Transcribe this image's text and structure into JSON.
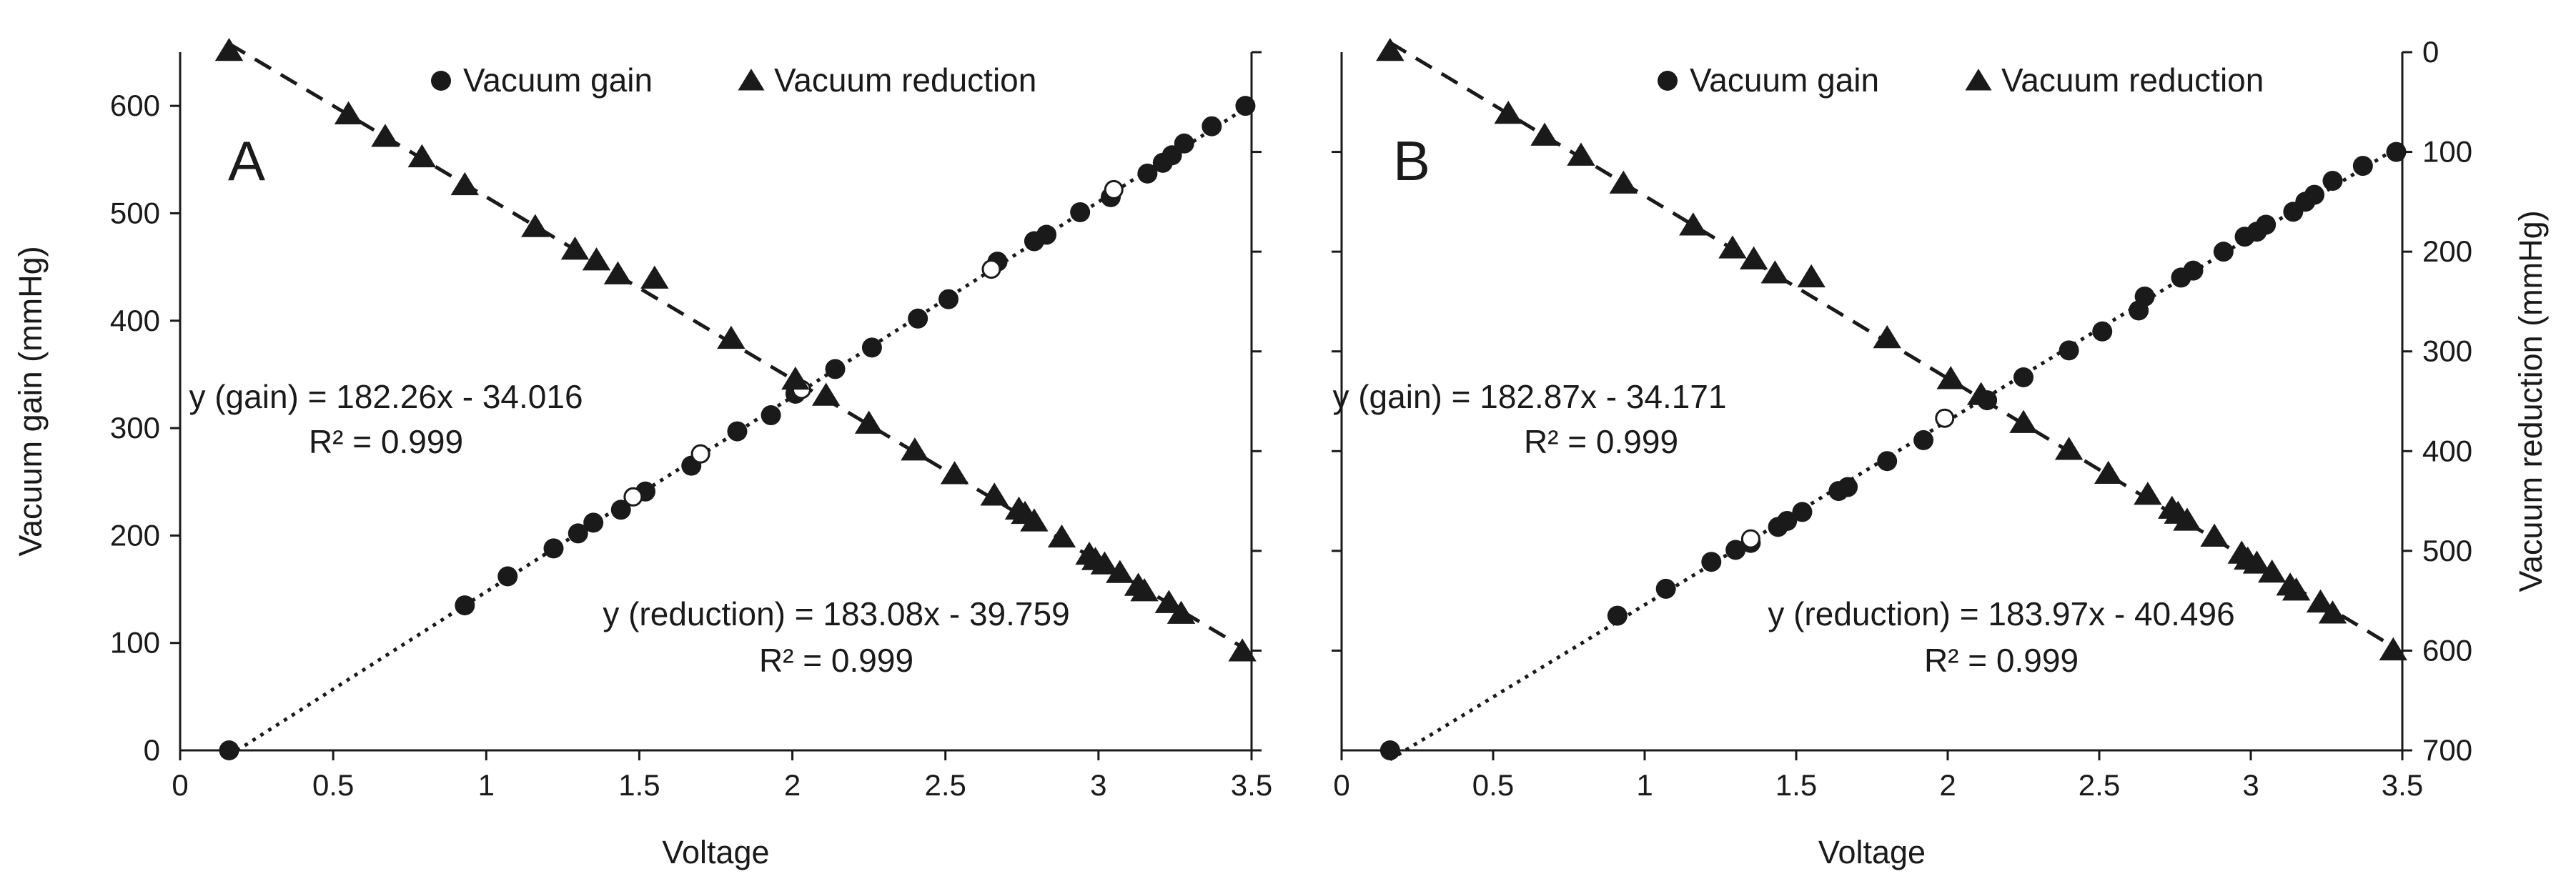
{
  "colors": {
    "marker": "#1a1a1a",
    "open_marker_fill": "#ffffff",
    "background": "#ffffff"
  },
  "chart_data": [
    {
      "type": "scatter",
      "panel_label": "A",
      "xlabel": "Voltage",
      "ylabel_left": "Vacuum gain (mmHg)",
      "ylabel_right": "",
      "xlim": [
        0,
        3.5
      ],
      "ylim_left": [
        0,
        650
      ],
      "ylim_right": [
        700,
        0
      ],
      "x_ticks": [
        "0",
        "0.5",
        "1",
        "1.5",
        "2",
        "2.5",
        "3",
        "3.5"
      ],
      "y_left_ticks": [
        "0",
        "100",
        "200",
        "300",
        "400",
        "500",
        "600"
      ],
      "y_right_ticks": [],
      "legend": [
        "Vacuum gain",
        "Vacuum reduction"
      ],
      "series": [
        {
          "name": "Vacuum gain",
          "marker": "circle",
          "fit": "dotted",
          "axis": "left",
          "x": [
            0.16,
            0.93,
            1.07,
            1.22,
            1.3,
            1.35,
            1.44,
            1.52,
            1.67,
            1.82,
            1.93,
            2.01,
            2.14,
            2.26,
            2.41,
            2.51,
            2.67,
            2.79,
            2.83,
            2.94,
            3.04,
            3.16,
            3.21,
            3.24,
            3.28,
            3.37,
            3.48
          ],
          "y": [
            0,
            135,
            162,
            188,
            202,
            212,
            224,
            241,
            265,
            297,
            312,
            332,
            355,
            375,
            402,
            420,
            455,
            474,
            480,
            501,
            515,
            537,
            547,
            554,
            565,
            581,
            600
          ],
          "open_x": [
            1.48,
            1.7,
            2.03,
            2.65,
            3.05
          ],
          "open_y": [
            236,
            276,
            336,
            448,
            522
          ]
        },
        {
          "name": "Vacuum reduction",
          "marker": "triangle",
          "fit": "dashed",
          "axis": "left",
          "x": [
            0.16,
            0.55,
            0.67,
            0.79,
            0.93,
            1.16,
            1.29,
            1.36,
            1.43,
            1.55,
            1.8,
            2.01,
            2.11,
            2.25,
            2.4,
            2.53,
            2.66,
            2.74,
            2.76,
            2.79,
            2.88,
            2.97,
            2.99,
            3.02,
            3.07,
            3.13,
            3.15,
            3.23,
            3.27,
            3.47
          ],
          "y": [
            650,
            591,
            570,
            551,
            525,
            486,
            465,
            455,
            442,
            438,
            382,
            344,
            329,
            303,
            278,
            256,
            236,
            223,
            219,
            212,
            197,
            181,
            176,
            172,
            164,
            152,
            147,
            136,
            126,
            91
          ],
          "open_x": [],
          "open_y": []
        }
      ],
      "annotations": [
        {
          "name": "gain-equation",
          "text": "y (gain) = 182.26x - 34.016"
        },
        {
          "name": "gain-r2",
          "text": "R² = 0.999"
        },
        {
          "name": "reduction-equation",
          "text": "y (reduction) = 183.08x - 39.759"
        },
        {
          "name": "reduction-r2",
          "text": "R² = 0.999"
        }
      ]
    },
    {
      "type": "scatter",
      "panel_label": "B",
      "xlabel": "Voltage",
      "ylabel_left": "",
      "ylabel_right": "Vacuum reduction (mmHg)",
      "xlim": [
        0,
        3.5
      ],
      "ylim_left": [
        0,
        700
      ],
      "ylim_right": [
        700,
        0
      ],
      "x_ticks": [
        "0",
        "0.5",
        "1",
        "1.5",
        "2",
        "2.5",
        "3",
        "3.5"
      ],
      "y_left_ticks": [],
      "y_right_ticks": [
        "0",
        "100",
        "200",
        "300",
        "400",
        "500",
        "600",
        "700"
      ],
      "legend": [
        "Vacuum gain",
        "Vacuum reduction"
      ],
      "series": [
        {
          "name": "Vacuum gain",
          "marker": "circle",
          "fit": "dotted",
          "axis": "left",
          "x": [
            0.16,
            0.91,
            1.07,
            1.22,
            1.3,
            1.35,
            1.44,
            1.47,
            1.52,
            1.64,
            1.67,
            1.8,
            1.92,
            2.13,
            2.25,
            2.4,
            2.51,
            2.63,
            2.65,
            2.77,
            2.81,
            2.91,
            2.98,
            3.02,
            3.05,
            3.14,
            3.18,
            3.21,
            3.27,
            3.37,
            3.48
          ],
          "y": [
            0,
            135,
            162,
            189,
            201,
            208,
            224,
            230,
            239,
            260,
            264,
            290,
            311,
            351,
            374,
            401,
            420,
            441,
            455,
            474,
            481,
            500,
            515,
            520,
            527,
            540,
            550,
            557,
            571,
            586,
            600
          ],
          "open_x": [
            1.35,
            1.99
          ],
          "open_y": [
            212,
            333
          ]
        },
        {
          "name": "Vacuum reduction",
          "marker": "triangle",
          "fit": "dashed",
          "axis": "right",
          "x": [
            0.16,
            0.55,
            0.67,
            0.79,
            0.93,
            1.16,
            1.29,
            1.36,
            1.43,
            1.55,
            1.8,
            2.01,
            2.11,
            2.25,
            2.4,
            2.53,
            2.66,
            2.74,
            2.76,
            2.79,
            2.88,
            2.97,
            2.99,
            3.02,
            3.07,
            3.13,
            3.15,
            3.23,
            3.27,
            3.47
          ],
          "y": [
            0,
            63,
            85,
            105,
            133,
            175,
            198,
            209,
            223,
            227,
            288,
            329,
            345,
            373,
            400,
            424,
            445,
            459,
            464,
            471,
            487,
            504,
            510,
            514,
            523,
            536,
            541,
            553,
            564,
            601
          ],
          "open_x": [],
          "open_y": []
        }
      ],
      "annotations": [
        {
          "name": "gain-equation",
          "text": "y (gain) = 182.87x - 34.171"
        },
        {
          "name": "gain-r2",
          "text": "R² = 0.999"
        },
        {
          "name": "reduction-equation",
          "text": "y (reduction) = 183.97x - 40.496"
        },
        {
          "name": "reduction-r2",
          "text": "R² = 0.999"
        }
      ]
    }
  ]
}
